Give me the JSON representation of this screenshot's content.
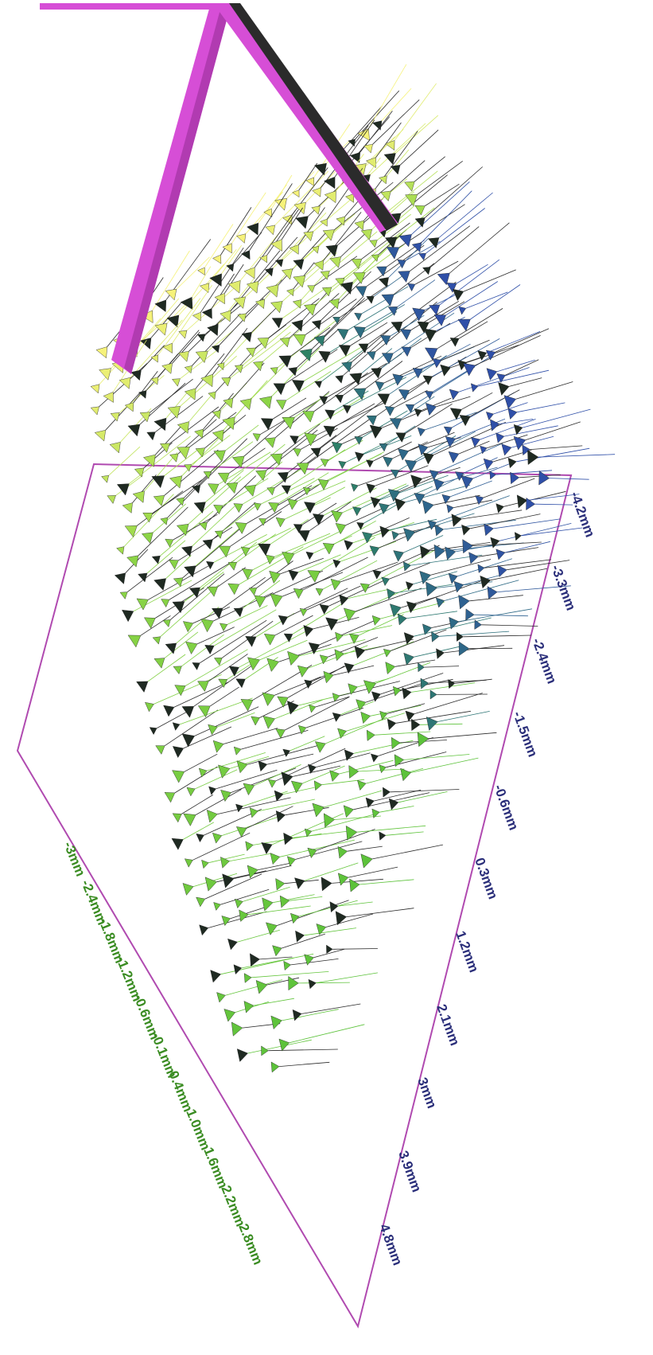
{
  "axes": {
    "x_ticks": [
      "-4.2mm",
      "-3.3mm",
      "-2.4mm",
      "-1.5mm",
      "-0.6mm",
      "0.3mm",
      "1.2mm",
      "2.1mm",
      "3mm",
      "3.9mm",
      "4.8mm"
    ],
    "y_ticks": [
      "-3mm",
      "-2.4mm",
      "-1.8mm",
      "-1.2mm",
      "-0.6mm",
      "-0.1mm",
      "0.4mm",
      "1.0mm",
      "1.6mm",
      "2.2mm",
      "2.8mm"
    ]
  },
  "colors": {
    "frame": "#d64ed6",
    "frame_dark": "#2b2b2b",
    "box": "#b04ab0",
    "x_label": "#2b2f7a",
    "y_label": "#3a8c22",
    "palette": [
      "#f6f27a",
      "#9edb4c",
      "#5cc23a",
      "#2d8a5a",
      "#2a6f8e",
      "#2f4fa8",
      "#1e3a2a"
    ]
  }
}
